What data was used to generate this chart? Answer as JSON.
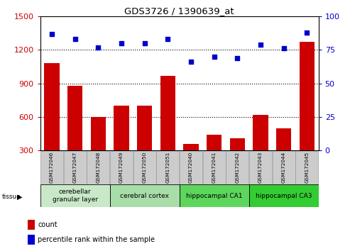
{
  "title": "GDS3726 / 1390639_at",
  "samples": [
    "GSM172046",
    "GSM172047",
    "GSM172048",
    "GSM172049",
    "GSM172050",
    "GSM172051",
    "GSM172040",
    "GSM172041",
    "GSM172042",
    "GSM172043",
    "GSM172044",
    "GSM172045"
  ],
  "counts": [
    1080,
    880,
    600,
    700,
    700,
    970,
    360,
    440,
    410,
    620,
    500,
    1270
  ],
  "percentiles": [
    87,
    83,
    77,
    80,
    80,
    83,
    66,
    70,
    69,
    79,
    76,
    88
  ],
  "ylim_left": [
    300,
    1500
  ],
  "ylim_right": [
    0,
    100
  ],
  "yticks_left": [
    300,
    600,
    900,
    1200,
    1500
  ],
  "yticks_right": [
    0,
    25,
    50,
    75,
    100
  ],
  "grid_lines": [
    600,
    900,
    1200
  ],
  "bar_color": "#cc0000",
  "dot_color": "#0000cc",
  "tissue_groups": [
    {
      "label": "cerebellar\ngranular layer",
      "indices": [
        0,
        1,
        2
      ],
      "color": "#c8e8c8"
    },
    {
      "label": "cerebral cortex",
      "indices": [
        3,
        4,
        5
      ],
      "color": "#a8dca8"
    },
    {
      "label": "hippocampal CA1",
      "indices": [
        6,
        7,
        8
      ],
      "color": "#5cd65c"
    },
    {
      "label": "hippocampal CA3",
      "indices": [
        9,
        10,
        11
      ],
      "color": "#33cc33"
    }
  ],
  "left_color": "#cc0000",
  "right_color": "#0000cc",
  "bg_color": "#ffffff",
  "sample_box_color": "#cccccc",
  "bar_bottom": 300
}
